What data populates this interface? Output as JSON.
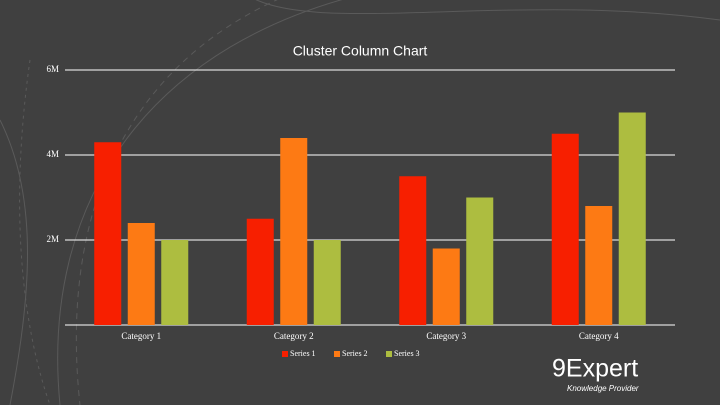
{
  "chart_data": {
    "type": "bar",
    "title": "Cluster Column Chart",
    "categories": [
      "Category 1",
      "Category 2",
      "Category 3",
      "Category 4"
    ],
    "series": [
      {
        "name": "Series 1",
        "color": "#f71f00",
        "values": [
          4300000,
          2500000,
          3500000,
          4500000
        ]
      },
      {
        "name": "Series 2",
        "color": "#fd7a14",
        "values": [
          2400000,
          4400000,
          1800000,
          2800000
        ]
      },
      {
        "name": "Series 3",
        "color": "#adbd40",
        "values": [
          2000000,
          2000000,
          3000000,
          5000000
        ]
      }
    ],
    "ylim": [
      0,
      6000000
    ],
    "yticks": [
      {
        "value": 2000000,
        "label": "2M"
      },
      {
        "value": 4000000,
        "label": "4M"
      },
      {
        "value": 6000000,
        "label": "6M"
      }
    ],
    "grid": true,
    "legend": "bottom"
  },
  "logo": {
    "name": "9Expert",
    "tagline": "Knowledge Provider"
  }
}
